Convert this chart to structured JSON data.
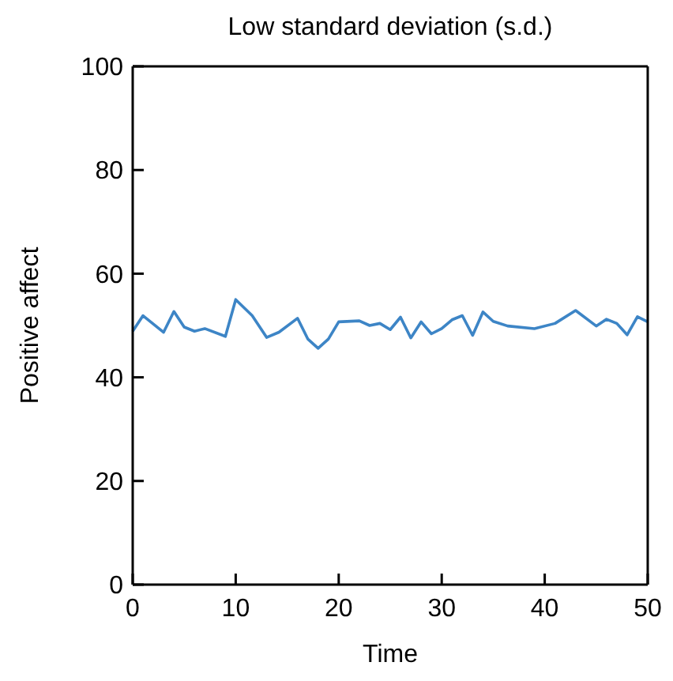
{
  "chart_data": {
    "type": "line",
    "title": "Low standard deviation (s.d.)",
    "xlabel": "Time",
    "ylabel": "Positive affect",
    "x": [
      0,
      1,
      3,
      4,
      5,
      6,
      7,
      9,
      10,
      11.6,
      13,
      14.2,
      16,
      17,
      18,
      19,
      20,
      22,
      23,
      24,
      25,
      26,
      27,
      28,
      29,
      30,
      31,
      32,
      33,
      34,
      35,
      36.4,
      39,
      41,
      43,
      45,
      46,
      47,
      48,
      49,
      50
    ],
    "series": [
      {
        "color": "#3d85c6",
        "values": [
          48.9,
          51.9,
          48.7,
          52.7,
          49.7,
          48.9,
          49.4,
          47.9,
          55,
          51.9,
          47.7,
          48.7,
          51.4,
          47.4,
          45.6,
          47.4,
          50.7,
          50.9,
          50,
          50.4,
          49.2,
          51.6,
          47.6,
          50.7,
          48.4,
          49.4,
          51.1,
          51.9,
          48.1,
          52.6,
          50.8,
          49.9,
          49.4,
          50.4,
          52.9,
          49.9,
          51.2,
          50.4,
          48.2,
          51.7,
          50.7
        ]
      }
    ],
    "xlim": [
      0,
      50
    ],
    "xticks": [
      0,
      10,
      20,
      30,
      40,
      50
    ],
    "ylim": [
      0,
      100
    ],
    "yticks": [
      0,
      20,
      40,
      60,
      80,
      100
    ],
    "grid": false,
    "marker": "none",
    "line_style": "solid"
  }
}
